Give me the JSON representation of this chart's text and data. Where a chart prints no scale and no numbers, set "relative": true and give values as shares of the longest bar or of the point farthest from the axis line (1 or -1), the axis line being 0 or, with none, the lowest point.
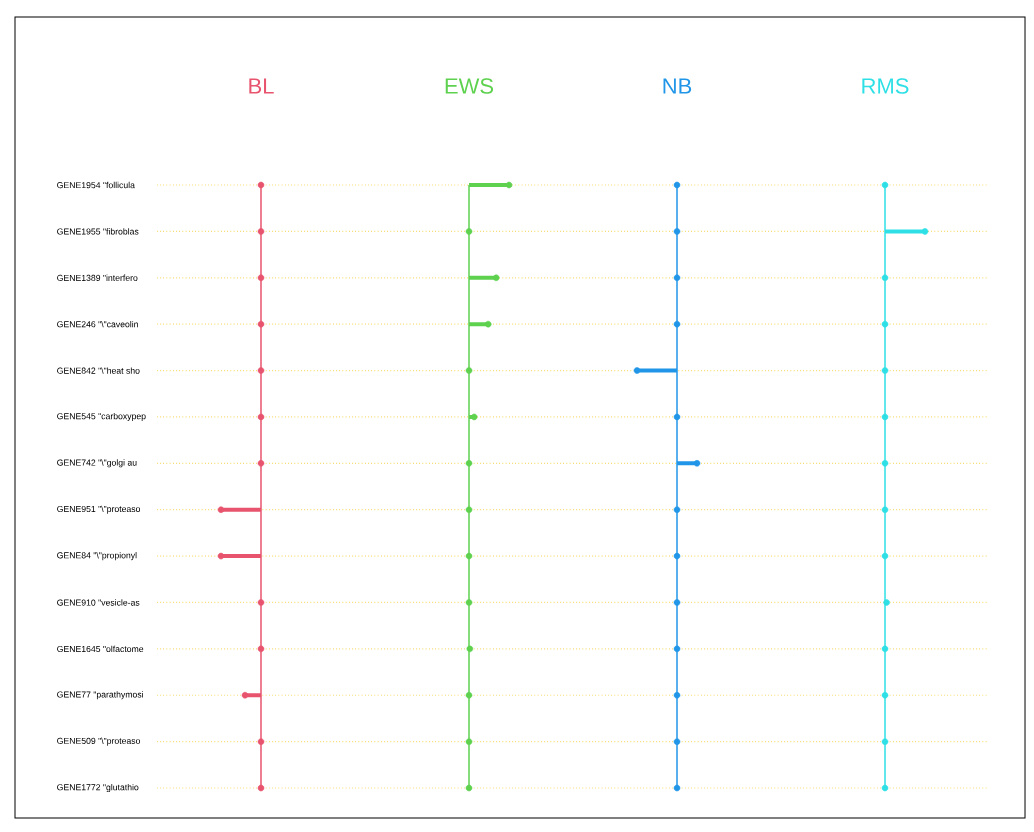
{
  "chart_data": [
    {
      "type": "lollipop",
      "orientation": "horizontal",
      "relative": true,
      "grid": "y",
      "title": "BL",
      "color": "#e8546e",
      "ref_lines": [
        {
          "axis": "x",
          "value": 0
        }
      ],
      "categories": [
        "GENE1954  \"follicula",
        "GENE1955  \"fibroblas",
        "GENE1389  \"interfero",
        "GENE246  \"\\\"caveolin",
        "GENE842  \"\\\"heat sho",
        "GENE545  \"carboxypep",
        "GENE742  \"\\\"golgi au",
        "GENE951  \"\\\"proteaso",
        "GENE84  \"\\\"propionyl",
        "GENE910  \"vesicle-as",
        "GENE1645  \"olfactome",
        "GENE77  \"parathymosi",
        "GENE509  \"\\\"proteaso",
        "GENE1772  \"glutathio"
      ],
      "values": [
        0,
        0,
        0,
        0,
        0,
        0,
        0,
        -1,
        -1,
        0,
        0,
        -0.4,
        0,
        0
      ]
    },
    {
      "type": "lollipop",
      "orientation": "horizontal",
      "relative": true,
      "grid": "y",
      "title": "EWS",
      "color": "#5ed14f",
      "categories": [
        null,
        null,
        null,
        null,
        null,
        null,
        null,
        null,
        null,
        null,
        null,
        null,
        null,
        null
      ],
      "values": [
        1,
        0,
        0.68,
        0.48,
        0,
        0.13,
        0,
        0,
        0,
        0,
        0.02,
        0,
        0,
        0
      ]
    },
    {
      "type": "lollipop",
      "orientation": "horizontal",
      "relative": true,
      "grid": "y",
      "title": "NB",
      "color": "#2196e8",
      "ref_lines": [
        {
          "axis": "x",
          "value": 0
        }
      ],
      "categories": [
        null,
        null,
        null,
        null,
        null,
        null,
        null,
        null,
        null,
        null,
        null,
        null,
        null,
        null
      ],
      "values": [
        0,
        0,
        0,
        0,
        -1,
        0,
        0.5,
        0,
        0,
        0,
        0,
        0,
        0,
        0
      ]
    },
    {
      "type": "lollipop",
      "orientation": "horizontal",
      "relative": true,
      "grid": "y",
      "title": "RMS",
      "color": "#2ee0e6",
      "categories": [
        null,
        null,
        null,
        null,
        null,
        null,
        null,
        null,
        null,
        null,
        null,
        null,
        null,
        null
      ],
      "values": [
        0,
        1,
        0,
        0,
        0,
        0,
        0,
        0,
        0,
        0.04,
        0,
        0,
        0,
        0
      ]
    }
  ]
}
